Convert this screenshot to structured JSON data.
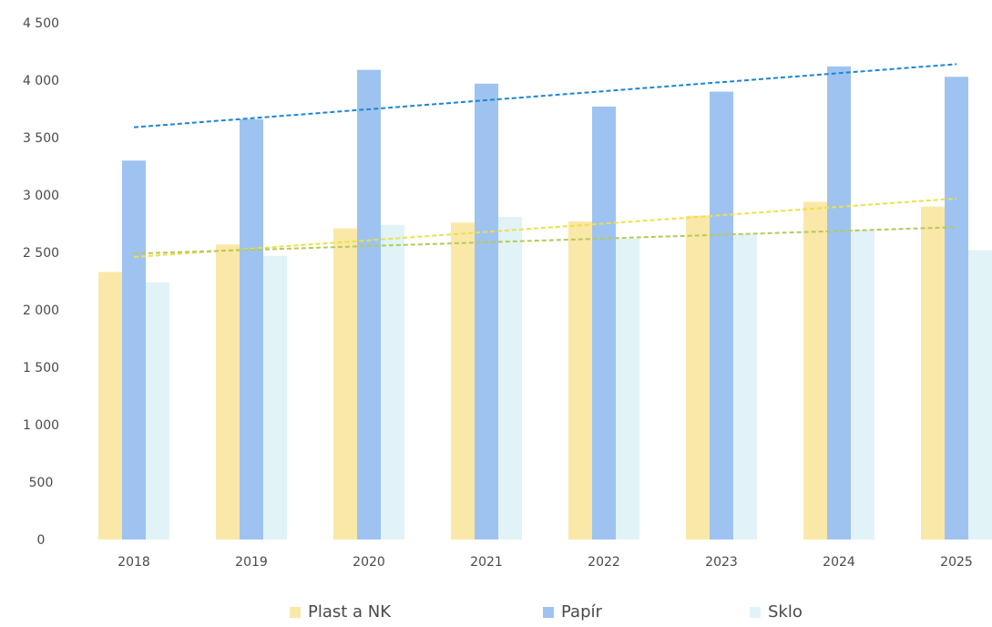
{
  "chart_data": {
    "type": "bar",
    "categories": [
      "2018",
      "2019",
      "2020",
      "2021",
      "2022",
      "2023",
      "2024",
      "2025"
    ],
    "series": [
      {
        "name": "Plast a NK",
        "values": [
          2330,
          2570,
          2710,
          2760,
          2770,
          2820,
          2940,
          2900
        ],
        "color": "#f9e8a8"
      },
      {
        "name": "Papír",
        "values": [
          3300,
          3660,
          4090,
          3970,
          3770,
          3900,
          4120,
          4030
        ],
        "color": "#9ec3f1"
      },
      {
        "name": "Sklo",
        "values": [
          2240,
          2470,
          2740,
          2810,
          2620,
          2660,
          2700,
          2520
        ],
        "color": "#e1f3f6"
      }
    ],
    "trendlines": [
      {
        "series": "Plast a NK",
        "start": 2460,
        "end": 2970,
        "color": "#f0df4a",
        "style": "dashed"
      },
      {
        "series": "Papír",
        "start": 3590,
        "end": 4140,
        "color": "#1f84d6",
        "style": "dashed"
      },
      {
        "series": "Sklo",
        "start": 2490,
        "end": 2720,
        "color": "#b6c95a",
        "style": "dashed"
      }
    ],
    "y_ticks": [
      "0",
      "500",
      "1 000",
      "1 500",
      "2 000",
      "2 500",
      "3 000",
      "3 500",
      "4 000",
      "4 500"
    ],
    "ylim": [
      0,
      4500
    ],
    "grid": false,
    "legend_position": "bottom"
  }
}
